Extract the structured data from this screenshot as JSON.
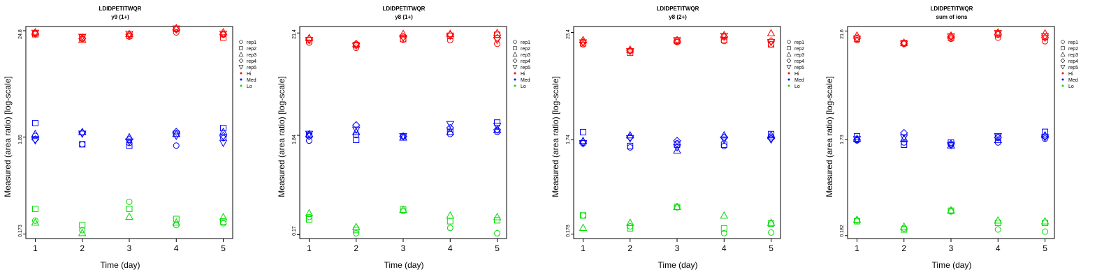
{
  "figure": {
    "xlabel": "Time (day)",
    "ylabel": "Measured (area ratio) [log-scale]"
  },
  "colors": {
    "Hi": "#ff0000",
    "Med": "#0000ff",
    "Lo": "#00dd00",
    "axis": "#000000"
  },
  "legend": {
    "reps": [
      {
        "label": "rep1",
        "symbol": "circle"
      },
      {
        "label": "rep2",
        "symbol": "square"
      },
      {
        "label": "rep3",
        "symbol": "triangle-up"
      },
      {
        "label": "rep4",
        "symbol": "diamond"
      },
      {
        "label": "rep5",
        "symbol": "triangle-down"
      }
    ],
    "levels": [
      {
        "label": "Hi",
        "color": "#ff0000"
      },
      {
        "label": "Med",
        "color": "#0000ff"
      },
      {
        "label": "Lo",
        "color": "#00dd00"
      }
    ]
  },
  "chart_data": [
    {
      "type": "scatter",
      "title": "LDIDPETITWQR",
      "subtitle": "y9 (1+)",
      "xlabel": "Time (day)",
      "ylabel": "Measured (area ratio) [log-scale]",
      "y_scale": "log",
      "ylim": [
        0.155,
        27.5
      ],
      "x": [
        1,
        2,
        3,
        4,
        5
      ],
      "xlim": [
        0.8,
        5.2
      ],
      "yticks": [
        "0.173",
        "1.85",
        "24.8"
      ],
      "series": [
        {
          "level": "Hi",
          "rep": "rep1",
          "values": [
            23.5,
            20.3,
            21.5,
            23.8,
            22.5
          ]
        },
        {
          "level": "Hi",
          "rep": "rep2",
          "values": [
            22.8,
            21.0,
            22.0,
            26.0,
            21.0
          ]
        },
        {
          "level": "Hi",
          "rep": "rep3",
          "values": [
            24.0,
            20.0,
            23.0,
            26.5,
            24.0
          ]
        },
        {
          "level": "Hi",
          "rep": "rep4",
          "values": [
            23.0,
            20.5,
            22.5,
            25.5,
            22.8
          ]
        },
        {
          "level": "Hi",
          "rep": "rep5",
          "values": [
            23.5,
            21.3,
            22.8,
            26.0,
            23.0
          ]
        },
        {
          "level": "Med",
          "rep": "rep1",
          "values": [
            1.9,
            1.55,
            1.6,
            1.5,
            1.8
          ]
        },
        {
          "level": "Med",
          "rep": "rep2",
          "values": [
            2.6,
            1.55,
            1.5,
            2.0,
            2.3
          ]
        },
        {
          "level": "Med",
          "rep": "rep3",
          "values": [
            2.0,
            2.1,
            1.85,
            2.0,
            2.1
          ]
        },
        {
          "level": "Med",
          "rep": "rep4",
          "values": [
            1.75,
            2.05,
            1.75,
            2.1,
            1.9
          ]
        },
        {
          "level": "Med",
          "rep": "rep5",
          "values": [
            1.7,
            2.0,
            1.65,
            1.9,
            1.6
          ]
        },
        {
          "level": "Lo",
          "rep": "rep1",
          "values": [
            0.24,
            0.19,
            0.38,
            0.215,
            0.225
          ]
        },
        {
          "level": "Lo",
          "rep": "rep2",
          "values": [
            0.32,
            0.215,
            0.32,
            0.25,
            0.235
          ]
        },
        {
          "level": "Lo",
          "rep": "rep3",
          "values": [
            0.23,
            0.178,
            0.265,
            0.23,
            0.262
          ]
        }
      ]
    },
    {
      "type": "scatter",
      "title": "LDIDPETITWQR",
      "subtitle": "y8 (1+)",
      "xlabel": "Time (day)",
      "ylabel": "Measured (area ratio) [log-scale]",
      "y_scale": "log",
      "ylim": [
        0.155,
        25.0
      ],
      "x": [
        1,
        2,
        3,
        4,
        5
      ],
      "xlim": [
        0.8,
        5.2
      ],
      "yticks": [
        "0.17",
        "1.84",
        "21.4"
      ],
      "series": [
        {
          "level": "Hi",
          "rep": "rep1",
          "values": [
            17.0,
            15.0,
            18.2,
            18.0,
            16.5
          ]
        },
        {
          "level": "Hi",
          "rep": "rep2",
          "values": [
            18.0,
            16.0,
            18.5,
            20.0,
            20.5
          ]
        },
        {
          "level": "Hi",
          "rep": "rep3",
          "values": [
            19.0,
            16.5,
            21.0,
            21.0,
            21.5
          ]
        },
        {
          "level": "Hi",
          "rep": "rep4",
          "values": [
            18.5,
            16.5,
            19.5,
            20.5,
            19.0
          ]
        },
        {
          "level": "Hi",
          "rep": "rep5",
          "values": [
            18.0,
            15.8,
            19.0,
            20.0,
            18.0
          ]
        },
        {
          "level": "Med",
          "rep": "rep1",
          "values": [
            1.62,
            1.85,
            1.8,
            1.9,
            2.0
          ]
        },
        {
          "level": "Med",
          "rep": "rep2",
          "values": [
            1.85,
            1.65,
            1.75,
            2.0,
            2.5
          ]
        },
        {
          "level": "Med",
          "rep": "rep3",
          "values": [
            1.9,
            2.0,
            1.75,
            2.0,
            2.1
          ]
        },
        {
          "level": "Med",
          "rep": "rep4",
          "values": [
            1.8,
            2.35,
            1.8,
            2.2,
            2.1
          ]
        },
        {
          "level": "Med",
          "rep": "rep5",
          "values": [
            1.9,
            2.1,
            1.8,
            2.4,
            2.3
          ]
        },
        {
          "level": "Lo",
          "rep": "rep1",
          "values": [
            0.26,
            0.176,
            0.3,
            0.2,
            0.176
          ]
        },
        {
          "level": "Lo",
          "rep": "rep2",
          "values": [
            0.245,
            0.19,
            0.31,
            0.235,
            0.24
          ]
        },
        {
          "level": "Lo",
          "rep": "rep3",
          "values": [
            0.285,
            0.205,
            0.31,
            0.27,
            0.26
          ]
        }
      ]
    },
    {
      "type": "scatter",
      "title": "LDIDPETITWQR",
      "subtitle": "y8 (2+)",
      "xlabel": "Time (day)",
      "ylabel": "Measured (area ratio) [log-scale]",
      "y_scale": "log",
      "ylim": [
        0.16,
        27.0
      ],
      "x": [
        1,
        2,
        3,
        4,
        5
      ],
      "xlim": [
        0.8,
        5.2
      ],
      "yticks": [
        "0.178",
        "1.74",
        "23.4"
      ],
      "series": [
        {
          "level": "Hi",
          "rep": "rep1",
          "values": [
            17.5,
            15.0,
            18.5,
            19.0,
            17.5
          ]
        },
        {
          "level": "Hi",
          "rep": "rep2",
          "values": [
            18.0,
            14.3,
            19.0,
            19.5,
            17.5
          ]
        },
        {
          "level": "Hi",
          "rep": "rep3",
          "values": [
            19.5,
            15.5,
            19.5,
            22.0,
            23.0
          ]
        },
        {
          "level": "Hi",
          "rep": "rep4",
          "values": [
            18.5,
            15.2,
            19.0,
            21.0,
            19.0
          ]
        },
        {
          "level": "Hi",
          "rep": "rep5",
          "values": [
            18.3,
            14.8,
            19.3,
            21.5,
            18.5
          ]
        },
        {
          "level": "Med",
          "rep": "rep1",
          "values": [
            1.6,
            1.45,
            1.6,
            1.5,
            1.85
          ]
        },
        {
          "level": "Med",
          "rep": "rep2",
          "values": [
            2.1,
            1.5,
            1.55,
            1.55,
            2.0
          ]
        },
        {
          "level": "Med",
          "rep": "rep3",
          "values": [
            1.7,
            1.95,
            1.35,
            1.95,
            1.95
          ]
        },
        {
          "level": "Med",
          "rep": "rep4",
          "values": [
            1.65,
            1.85,
            1.7,
            1.85,
            1.8
          ]
        },
        {
          "level": "Med",
          "rep": "rep5",
          "values": [
            1.6,
            1.8,
            1.45,
            1.75,
            1.75
          ]
        },
        {
          "level": "Lo",
          "rep": "rep1",
          "values": [
            0.28,
            0.215,
            0.34,
            0.182,
            0.185
          ]
        },
        {
          "level": "Lo",
          "rep": "rep2",
          "values": [
            0.28,
            0.205,
            0.345,
            0.205,
            0.23
          ]
        },
        {
          "level": "Lo",
          "rep": "rep3",
          "values": [
            0.208,
            0.235,
            0.345,
            0.28,
            0.235
          ]
        }
      ]
    },
    {
      "type": "scatter",
      "title": "LDIDPETITWQR",
      "subtitle": "sum of ions",
      "xlabel": "Time (day)",
      "ylabel": "Measured (area ratio) [log-scale]",
      "y_scale": "log",
      "ylim": [
        0.17,
        24.0
      ],
      "x": [
        1,
        2,
        3,
        4,
        5
      ],
      "xlim": [
        0.8,
        5.2
      ],
      "yticks": [
        "0.182",
        "1.73",
        "21.6"
      ],
      "series": [
        {
          "level": "Hi",
          "rep": "rep1",
          "values": [
            17.5,
            16.0,
            18.0,
            18.5,
            17.0
          ]
        },
        {
          "level": "Hi",
          "rep": "rep2",
          "values": [
            18.0,
            16.3,
            18.5,
            20.0,
            19.0
          ]
        },
        {
          "level": "Hi",
          "rep": "rep3",
          "values": [
            19.5,
            16.5,
            19.5,
            21.0,
            20.5
          ]
        },
        {
          "level": "Hi",
          "rep": "rep4",
          "values": [
            18.3,
            16.2,
            18.8,
            20.0,
            18.5
          ]
        },
        {
          "level": "Hi",
          "rep": "rep5",
          "values": [
            18.0,
            16.0,
            19.0,
            20.5,
            19.0
          ]
        },
        {
          "level": "Med",
          "rep": "rep1",
          "values": [
            1.68,
            1.6,
            1.52,
            1.6,
            1.75
          ]
        },
        {
          "level": "Med",
          "rep": "rep2",
          "values": [
            1.85,
            1.52,
            1.6,
            1.8,
            2.05
          ]
        },
        {
          "level": "Med",
          "rep": "rep3",
          "values": [
            1.75,
            1.75,
            1.5,
            1.7,
            1.9
          ]
        },
        {
          "level": "Med",
          "rep": "rep4",
          "values": [
            1.7,
            2.0,
            1.55,
            1.8,
            1.85
          ]
        },
        {
          "level": "Med",
          "rep": "rep5",
          "values": [
            1.72,
            1.8,
            1.5,
            1.85,
            1.8
          ]
        },
        {
          "level": "Lo",
          "rep": "rep1",
          "values": [
            0.26,
            0.215,
            0.32,
            0.21,
            0.2
          ]
        },
        {
          "level": "Lo",
          "rep": "rep2",
          "values": [
            0.255,
            0.21,
            0.325,
            0.245,
            0.245
          ]
        },
        {
          "level": "Lo",
          "rep": "rep3",
          "values": [
            0.265,
            0.225,
            0.33,
            0.26,
            0.255
          ]
        }
      ]
    }
  ]
}
